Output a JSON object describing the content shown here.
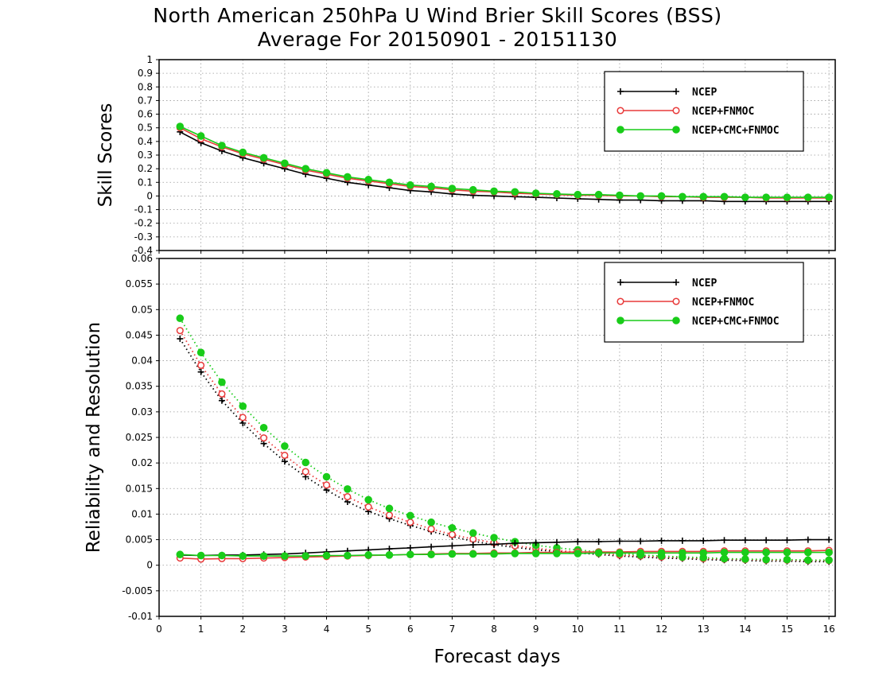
{
  "title_line1": "North American 250hPa U Wind Brier Skill Scores (BSS)",
  "title_line2": "Average For 20150901 - 20151130",
  "xlabel": "Forecast days",
  "colors": {
    "NCEP": "#000000",
    "NCEP+FNMOC": "#e83a3a",
    "NCEP+CMC+FNMOC": "#19cc19"
  },
  "chart_data": [
    {
      "type": "line",
      "ylabel": "Skill Scores",
      "xlim": [
        0,
        16.15
      ],
      "ylim": [
        -0.4,
        1
      ],
      "yticks": [
        "1",
        "0.9",
        "0.8",
        "0.7",
        "0.6",
        "0.5",
        "0.4",
        "0.3",
        "0.2",
        "0.1",
        "0",
        "-0.1",
        "-0.2",
        "-0.3",
        "-0.4"
      ],
      "xticks": [
        "0",
        "1",
        "2",
        "3",
        "4",
        "5",
        "6",
        "7",
        "8",
        "9",
        "10",
        "11",
        "12",
        "13",
        "14",
        "15",
        "16"
      ],
      "grid": true,
      "legend_position": "top-right",
      "x": [
        0.5,
        1,
        1.5,
        2,
        2.5,
        3,
        3.5,
        4,
        4.5,
        5,
        5.5,
        6,
        6.5,
        7,
        7.5,
        8,
        8.5,
        9,
        9.5,
        10,
        10.5,
        11,
        11.5,
        12,
        12.5,
        13,
        13.5,
        14,
        14.5,
        15,
        15.5,
        16
      ],
      "series": [
        {
          "name": "NCEP",
          "marker": "plus",
          "style": "solid",
          "values": [
            0.47,
            0.39,
            0.33,
            0.28,
            0.24,
            0.2,
            0.16,
            0.13,
            0.1,
            0.08,
            0.06,
            0.04,
            0.03,
            0.015,
            0.005,
            0,
            -0.005,
            -0.01,
            -0.015,
            -0.02,
            -0.025,
            -0.03,
            -0.03,
            -0.035,
            -0.035,
            -0.035,
            -0.04,
            -0.04,
            -0.04,
            -0.04,
            -0.04,
            -0.04
          ]
        },
        {
          "name": "NCEP+FNMOC",
          "marker": "open-circle",
          "style": "solid",
          "values": [
            0.5,
            0.42,
            0.36,
            0.31,
            0.27,
            0.23,
            0.19,
            0.16,
            0.13,
            0.11,
            0.09,
            0.07,
            0.06,
            0.045,
            0.035,
            0.03,
            0.02,
            0.015,
            0.01,
            0.005,
            0.005,
            0,
            0,
            -0.005,
            -0.005,
            -0.01,
            -0.01,
            -0.01,
            -0.015,
            -0.015,
            -0.015,
            -0.015
          ]
        },
        {
          "name": "NCEP+CMC+FNMOC",
          "marker": "filled-circle",
          "style": "solid",
          "values": [
            0.51,
            0.44,
            0.37,
            0.32,
            0.28,
            0.24,
            0.2,
            0.17,
            0.14,
            0.12,
            0.1,
            0.08,
            0.07,
            0.055,
            0.045,
            0.035,
            0.03,
            0.02,
            0.015,
            0.01,
            0.01,
            0.005,
            0,
            0,
            -0.005,
            -0.005,
            -0.005,
            -0.01,
            -0.01,
            -0.01,
            -0.01,
            -0.01
          ]
        }
      ]
    },
    {
      "type": "line",
      "ylabel": "Reliability and Resolution",
      "xlim": [
        0,
        16.15
      ],
      "ylim": [
        -0.01,
        0.06
      ],
      "yticks": [
        "0.06",
        "0.055",
        "0.05",
        "0.045",
        "0.04",
        "0.035",
        "0.03",
        "0.025",
        "0.02",
        "0.015",
        "0.01",
        "0.005",
        "0",
        "-0.005",
        "-0.01"
      ],
      "xticks": [
        "0",
        "1",
        "2",
        "3",
        "4",
        "5",
        "6",
        "7",
        "8",
        "9",
        "10",
        "11",
        "12",
        "13",
        "14",
        "15",
        "16"
      ],
      "grid": true,
      "legend_position": "top-right",
      "x": [
        0.5,
        1,
        1.5,
        2,
        2.5,
        3,
        3.5,
        4,
        4.5,
        5,
        5.5,
        6,
        6.5,
        7,
        7.5,
        8,
        8.5,
        9,
        9.5,
        10,
        10.5,
        11,
        11.5,
        12,
        12.5,
        13,
        13.5,
        14,
        14.5,
        15,
        15.5,
        16
      ],
      "series": [
        {
          "name": "NCEP",
          "marker": "plus",
          "style": "dotted",
          "quantity": "resolution",
          "values": [
            0.0443,
            0.0378,
            0.0322,
            0.0278,
            0.0238,
            0.0203,
            0.0173,
            0.0147,
            0.0124,
            0.0105,
            0.0091,
            0.0078,
            0.0066,
            0.0056,
            0.0047,
            0.004,
            0.0035,
            0.003,
            0.0027,
            0.0024,
            0.0021,
            0.0018,
            0.0016,
            0.0014,
            0.0013,
            0.0011,
            0.001,
            0.0009,
            0.0008,
            0.0008,
            0.0007,
            0.0007
          ]
        },
        {
          "name": "NCEP+FNMOC",
          "marker": "open-circle",
          "style": "dotted",
          "quantity": "resolution",
          "values": [
            0.0459,
            0.0391,
            0.0335,
            0.0289,
            0.0249,
            0.0215,
            0.0183,
            0.0157,
            0.0134,
            0.0114,
            0.0098,
            0.0084,
            0.0071,
            0.006,
            0.0051,
            0.0044,
            0.0038,
            0.0033,
            0.0029,
            0.0026,
            0.0023,
            0.002,
            0.0018,
            0.0016,
            0.0015,
            0.0013,
            0.0012,
            0.0011,
            0.001,
            0.001,
            0.0009,
            0.0009
          ]
        },
        {
          "name": "NCEP+CMC+FNMOC",
          "marker": "filled-circle",
          "style": "dotted",
          "quantity": "resolution",
          "values": [
            0.0483,
            0.0416,
            0.0358,
            0.0311,
            0.0269,
            0.0233,
            0.0201,
            0.0173,
            0.0149,
            0.0128,
            0.0111,
            0.0097,
            0.0084,
            0.0073,
            0.0063,
            0.0054,
            0.0046,
            0.0039,
            0.0034,
            0.003,
            0.0026,
            0.0023,
            0.002,
            0.0018,
            0.0016,
            0.0015,
            0.0013,
            0.0012,
            0.0011,
            0.0011,
            0.001,
            0.001
          ]
        },
        {
          "name": "NCEP",
          "marker": "plus",
          "style": "solid",
          "quantity": "reliability",
          "values": [
            0.002,
            0.0019,
            0.002,
            0.002,
            0.0021,
            0.0022,
            0.0024,
            0.0026,
            0.0028,
            0.003,
            0.0032,
            0.0034,
            0.0036,
            0.0038,
            0.004,
            0.0041,
            0.0043,
            0.0044,
            0.0045,
            0.0046,
            0.0046,
            0.0047,
            0.0047,
            0.0048,
            0.0048,
            0.0048,
            0.0049,
            0.0049,
            0.0049,
            0.0049,
            0.005,
            0.005
          ]
        },
        {
          "name": "NCEP+FNMOC",
          "marker": "open-circle",
          "style": "solid",
          "quantity": "reliability",
          "values": [
            0.0014,
            0.0012,
            0.0013,
            0.0013,
            0.0014,
            0.0015,
            0.0016,
            0.0017,
            0.0018,
            0.0019,
            0.002,
            0.0021,
            0.0022,
            0.0023,
            0.0023,
            0.0024,
            0.0024,
            0.0025,
            0.0025,
            0.0026,
            0.0026,
            0.0026,
            0.0027,
            0.0027,
            0.0027,
            0.0027,
            0.0028,
            0.0028,
            0.0028,
            0.0028,
            0.0028,
            0.0029
          ]
        },
        {
          "name": "NCEP+CMC+FNMOC",
          "marker": "filled-circle",
          "style": "solid",
          "quantity": "reliability",
          "values": [
            0.0021,
            0.0019,
            0.0019,
            0.0018,
            0.0018,
            0.0018,
            0.0018,
            0.0019,
            0.0019,
            0.002,
            0.002,
            0.0021,
            0.0021,
            0.0022,
            0.0022,
            0.0022,
            0.0023,
            0.0023,
            0.0023,
            0.0023,
            0.0024,
            0.0024,
            0.0024,
            0.0024,
            0.0024,
            0.0024,
            0.0025,
            0.0025,
            0.0025,
            0.0025,
            0.0025,
            0.0025
          ]
        }
      ]
    }
  ]
}
